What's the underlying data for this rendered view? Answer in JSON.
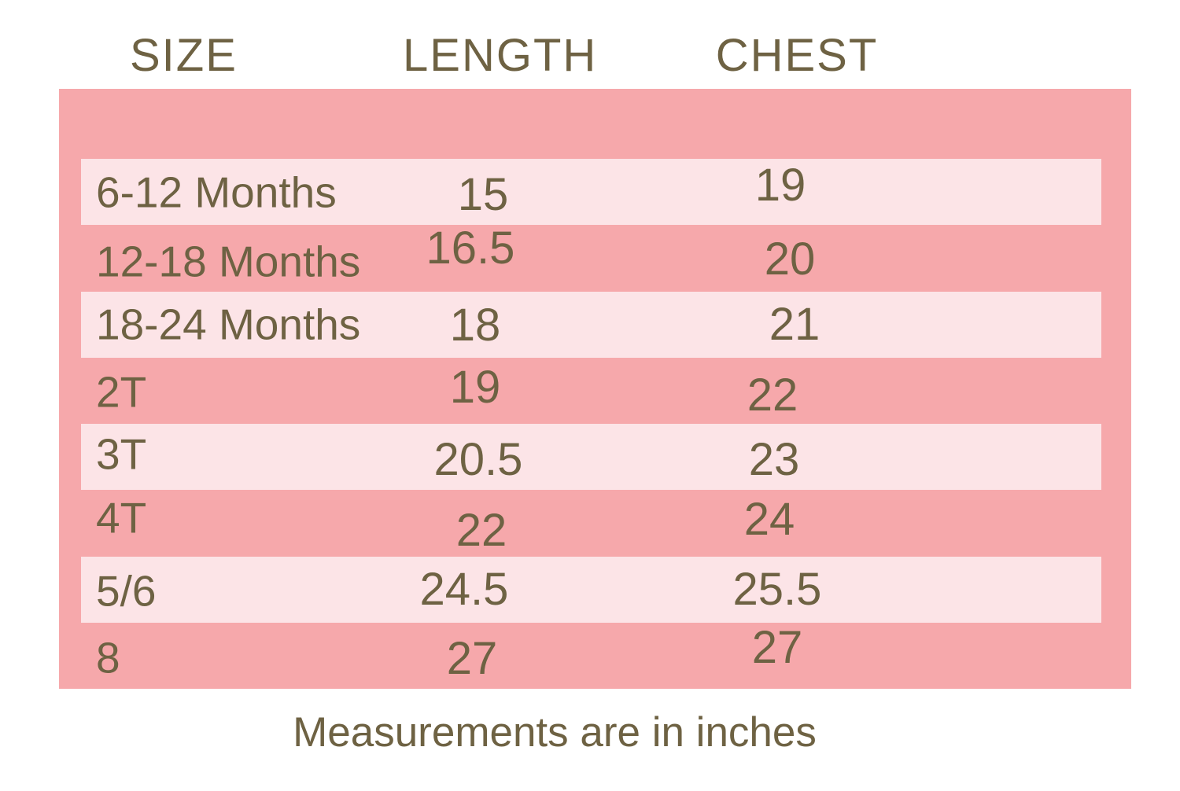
{
  "chart_data": {
    "type": "table",
    "title": "",
    "columns": [
      "SIZE",
      "LENGTH",
      "CHEST"
    ],
    "rows": [
      {
        "size": "6-12 Months",
        "length": "15",
        "chest": "19"
      },
      {
        "size": "12-18 Months",
        "length": "16.5",
        "chest": "20"
      },
      {
        "size": "18-24 Months",
        "length": "18",
        "chest": "21"
      },
      {
        "size": "2T",
        "length": "19",
        "chest": "22"
      },
      {
        "size": "3T",
        "length": "20.5",
        "chest": "23"
      },
      {
        "size": "4T",
        "length": "22",
        "chest": "24"
      },
      {
        "size": "5/6",
        "length": "24.5",
        "chest": "25.5"
      },
      {
        "size": "8",
        "length": "27",
        "chest": "27"
      }
    ],
    "footnote": "Measurements are in inches",
    "units": "inches",
    "layout_hints": {
      "striped_rows": "odd rows light pink",
      "grid": "off",
      "legend": "none"
    }
  },
  "colors": {
    "background": "#FFFFFF",
    "panel_pink": "#F6A8AB",
    "stripe_pink": "#FCE4E7",
    "text_olive": "#6E6243"
  }
}
